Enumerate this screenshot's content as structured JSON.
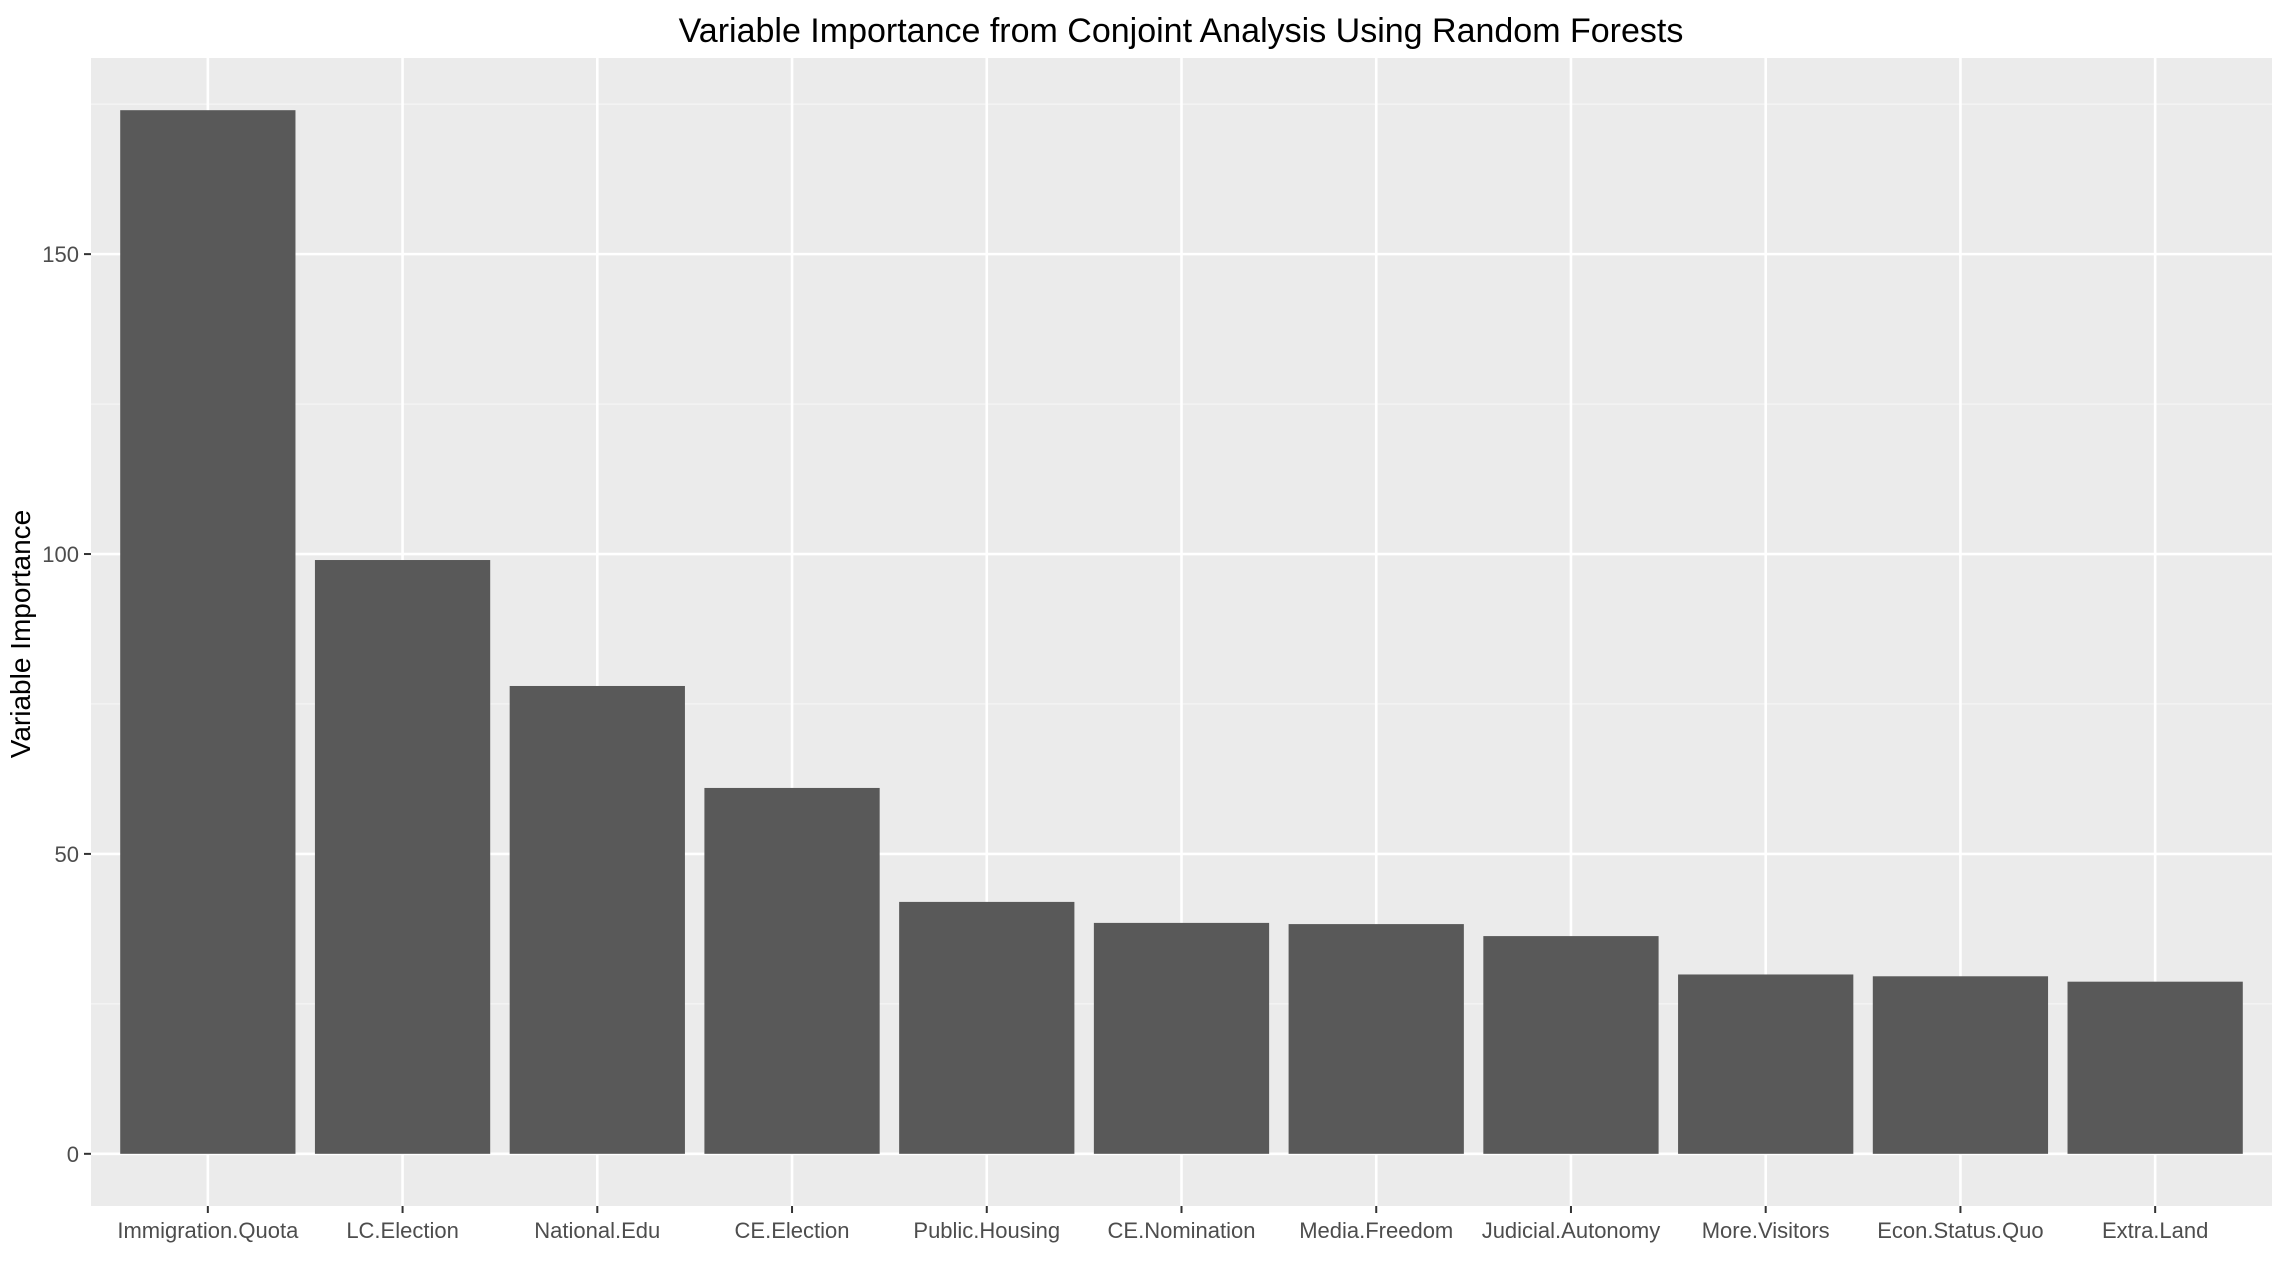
{
  "chart_data": {
    "type": "bar",
    "title": "Variable Importance from Conjoint Analysis Using Random Forests",
    "xlabel": "",
    "ylabel": "Variable Importance",
    "categories": [
      "Immigration.Quota",
      "LC.Election",
      "National.Edu",
      "CE.Election",
      "Public.Housing",
      "CE.Nomination",
      "Media.Freedom",
      "Judicial.Autonomy",
      "More.Visitors",
      "Econ.Status.Quo",
      "Extra.Land"
    ],
    "values": [
      174,
      99,
      78,
      61,
      42,
      38.5,
      38.3,
      36.3,
      29.9,
      29.6,
      28.7
    ],
    "ylim": [
      -8.7,
      182.7
    ],
    "yticks": [
      0,
      50,
      100,
      150
    ],
    "grid": true,
    "colors": {
      "bar": "#595959",
      "panel": "#ebebeb",
      "grid_major": "#ffffff",
      "grid_minor": "#f4f4f4"
    }
  }
}
